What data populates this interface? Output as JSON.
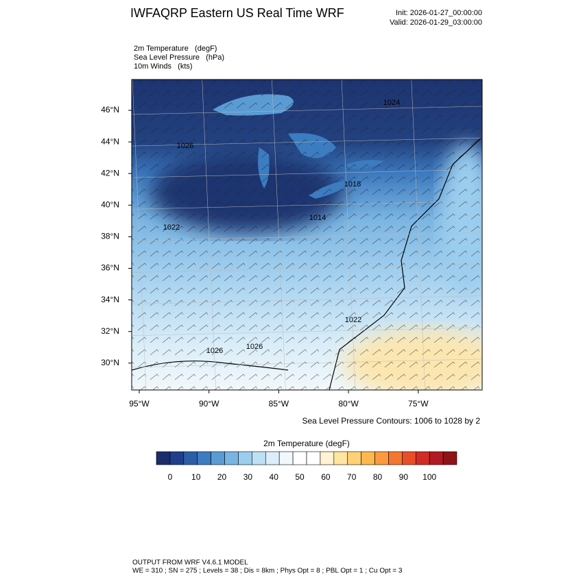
{
  "title": "IWFAQRP Eastern US Real Time WRF",
  "init": "Init: 2026-01-27_00:00:00",
  "valid": "Valid: 2026-01-29_03:00:00",
  "fields": [
    "2m Temperature   (degF)",
    "Sea Level Pressure   (hPa)",
    "10m Winds   (kts)"
  ],
  "map": {
    "lat_labels": [
      "46°N",
      "44°N",
      "42°N",
      "40°N",
      "38°N",
      "36°N",
      "34°N",
      "32°N",
      "30°N"
    ],
    "lon_labels": [
      "95°W",
      "90°W",
      "85°W",
      "80°W",
      "75°W"
    ],
    "contour_labels": [
      "1026",
      "1022",
      "1026",
      "1026",
      "1022",
      "1018",
      "1014",
      "1024"
    ]
  },
  "contour_note": "Sea Level Pressure Contours: 1006 to 1028 by 2",
  "colorbar": {
    "title": "2m Temperature  (degF)",
    "ticks": [
      0,
      10,
      20,
      30,
      40,
      50,
      60,
      70,
      80,
      90,
      100
    ],
    "colors": [
      "#1b2d6b",
      "#1f3f8c",
      "#2c5ea8",
      "#3c7cc0",
      "#5a9bd4",
      "#79b5e3",
      "#9bcdee",
      "#bde0f5",
      "#daeefa",
      "#f0f8fc",
      "#ffffff",
      "#ffffff",
      "#fff3d2",
      "#ffe5a0",
      "#ffd074",
      "#ffb84f",
      "#fd9a3f",
      "#f5762f",
      "#e84e2a",
      "#d32b26",
      "#b11b22",
      "#8e1418"
    ]
  },
  "footer": [
    "OUTPUT FROM WRF V4.6.1 MODEL",
    "WE = 310 ; SN = 275 ; Levels = 38 ; Dis = 8km ; Phys Opt = 8 ; PBL Opt = 1 ; Cu Opt = 3"
  ]
}
